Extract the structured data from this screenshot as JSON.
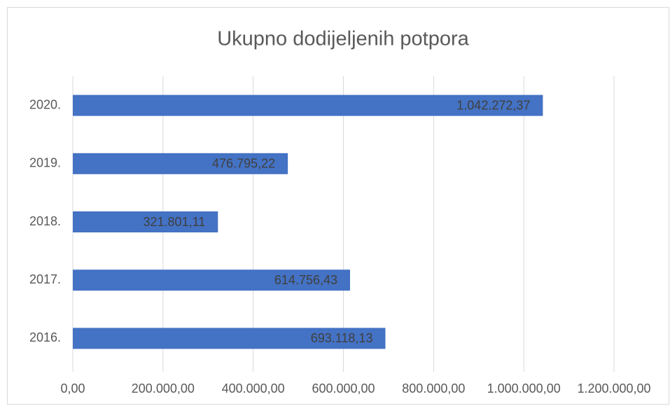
{
  "chart_data": {
    "type": "barh",
    "title": "Ukupno dodijeljenih potpora",
    "categories": [
      "2020.",
      "2019.",
      "2018.",
      "2017.",
      "2016."
    ],
    "values": [
      1042272.37,
      476795.22,
      321801.11,
      614756.43,
      693118.13
    ],
    "value_labels": [
      "1.042.272,37",
      "476.795,22",
      "321.801,11",
      "614.756,43",
      "693.118,13"
    ],
    "color": "#4472c4",
    "xlim": [
      0,
      1200000
    ],
    "xticks": [
      {
        "value": 0,
        "label": "0,00"
      },
      {
        "value": 200000,
        "label": "200.000,00"
      },
      {
        "value": 400000,
        "label": "400.000,00"
      },
      {
        "value": 600000,
        "label": "600.000,00"
      },
      {
        "value": 800000,
        "label": "800.000,00"
      },
      {
        "value": 1000000,
        "label": "1.000.000,00"
      },
      {
        "value": 1200000,
        "label": "1.200.000,00"
      }
    ],
    "grid": true
  }
}
